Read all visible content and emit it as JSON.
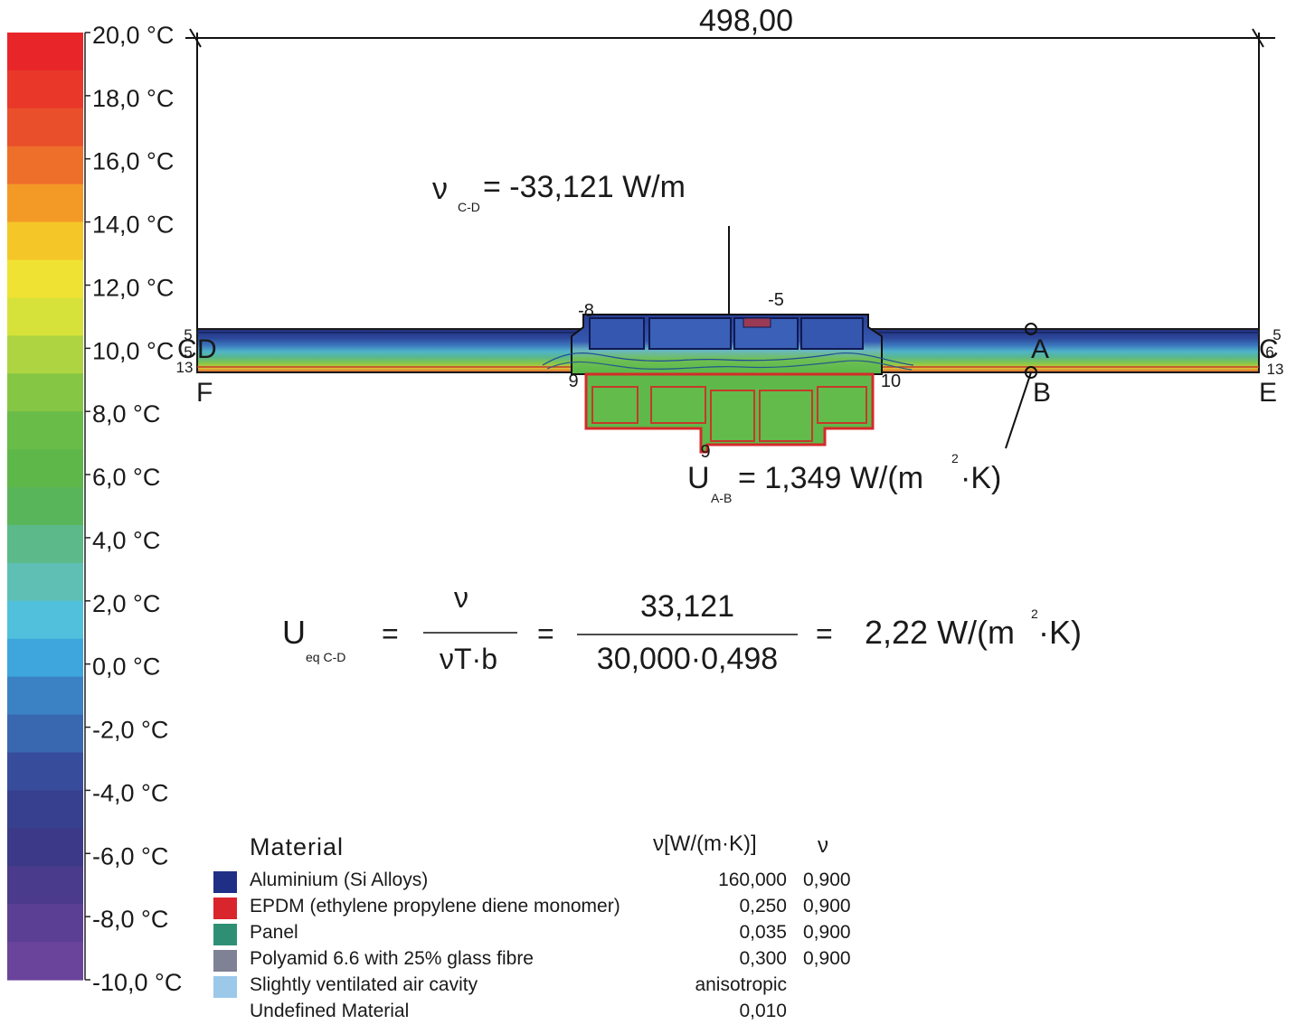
{
  "scale": {
    "labels": [
      "20,0 °C",
      "18,0 °C",
      "16,0 °C",
      "14,0 °C",
      "12,0 °C",
      "10,0 °C",
      "8,0 °C",
      "6,0 °C",
      "4,0 °C",
      "2,0 °C",
      "0,0 °C",
      "-2,0 °C",
      "-4,0 °C",
      "-6,0 °C",
      "-8,0 °C",
      "-10,0 °C"
    ],
    "colors": [
      "#e8262a",
      "#e9382a",
      "#ea4f2b",
      "#ee6f2a",
      "#f39a26",
      "#f5c627",
      "#f0e232",
      "#d6e23a",
      "#aed442",
      "#86c645",
      "#69bc48",
      "#5db849",
      "#59b55a",
      "#5bb98a",
      "#5fbfb5",
      "#51c0dc",
      "#3ea6dc",
      "#3b82c4",
      "#3a68b0",
      "#374d9c",
      "#36408e",
      "#3c3a88",
      "#4a3b8c",
      "#5b3f95",
      "#6a449b"
    ]
  },
  "diagram": {
    "dimension": "498,00",
    "psi_label": "ν",
    "psi_sub": "C-D",
    "psi_value": "= -33,121 W/m",
    "u_label": "U",
    "u_sub": "A-B",
    "u_value": "= 1,349 W/(m",
    "u_sup": "2",
    "u_tail": "·K)",
    "points": {
      "A": "A",
      "B": "B",
      "C": "C",
      "D": "D",
      "E": "E",
      "F": "F"
    },
    "contour_values": {
      "top_mid": "-5",
      "top_left": "-8",
      "mid_left": "9",
      "mid_right": "10",
      "bottom": "9",
      "left_5a": "5",
      "left_5b": "5",
      "left_13": "13",
      "right_5": "5",
      "right_6": "6",
      "right_13": "13"
    }
  },
  "equation": {
    "lhs": "U",
    "lhs_sub": "eq C-D",
    "eq1": "=",
    "num1": "ν",
    "den1": "νT·b",
    "eq2": "=",
    "num2": "33,121",
    "den2": "30,000·0,498",
    "eq3": "=",
    "result": "2,22 W/(m",
    "result_sup": "2",
    "result_tail": "·K)"
  },
  "legend": {
    "header_material": "Material",
    "header_lambda": "ν[W/(m·K)]",
    "header_eps": "ν",
    "rows": [
      {
        "name": "Aluminium (Si Alloys)",
        "lambda": "160,000",
        "eps": "0,900",
        "color": "#1f2f86"
      },
      {
        "name": "EPDM (ethylene propylene diene monomer)",
        "lambda": "0,250",
        "eps": "0,900",
        "color": "#d9262c"
      },
      {
        "name": "Panel",
        "lambda": "0,035",
        "eps": "0,900",
        "color": "#2f8f75"
      },
      {
        "name": "Polyamid 6.6 with 25% glass fibre",
        "lambda": "0,300",
        "eps": "0,900",
        "color": "#7f8194"
      },
      {
        "name": "Slightly ventilated air cavity",
        "lambda": "anisotropic",
        "eps": "",
        "color": "#9cc8ea"
      },
      {
        "name": "Undefined Material",
        "lambda": "0,010",
        "eps": "",
        "color": ""
      }
    ]
  }
}
